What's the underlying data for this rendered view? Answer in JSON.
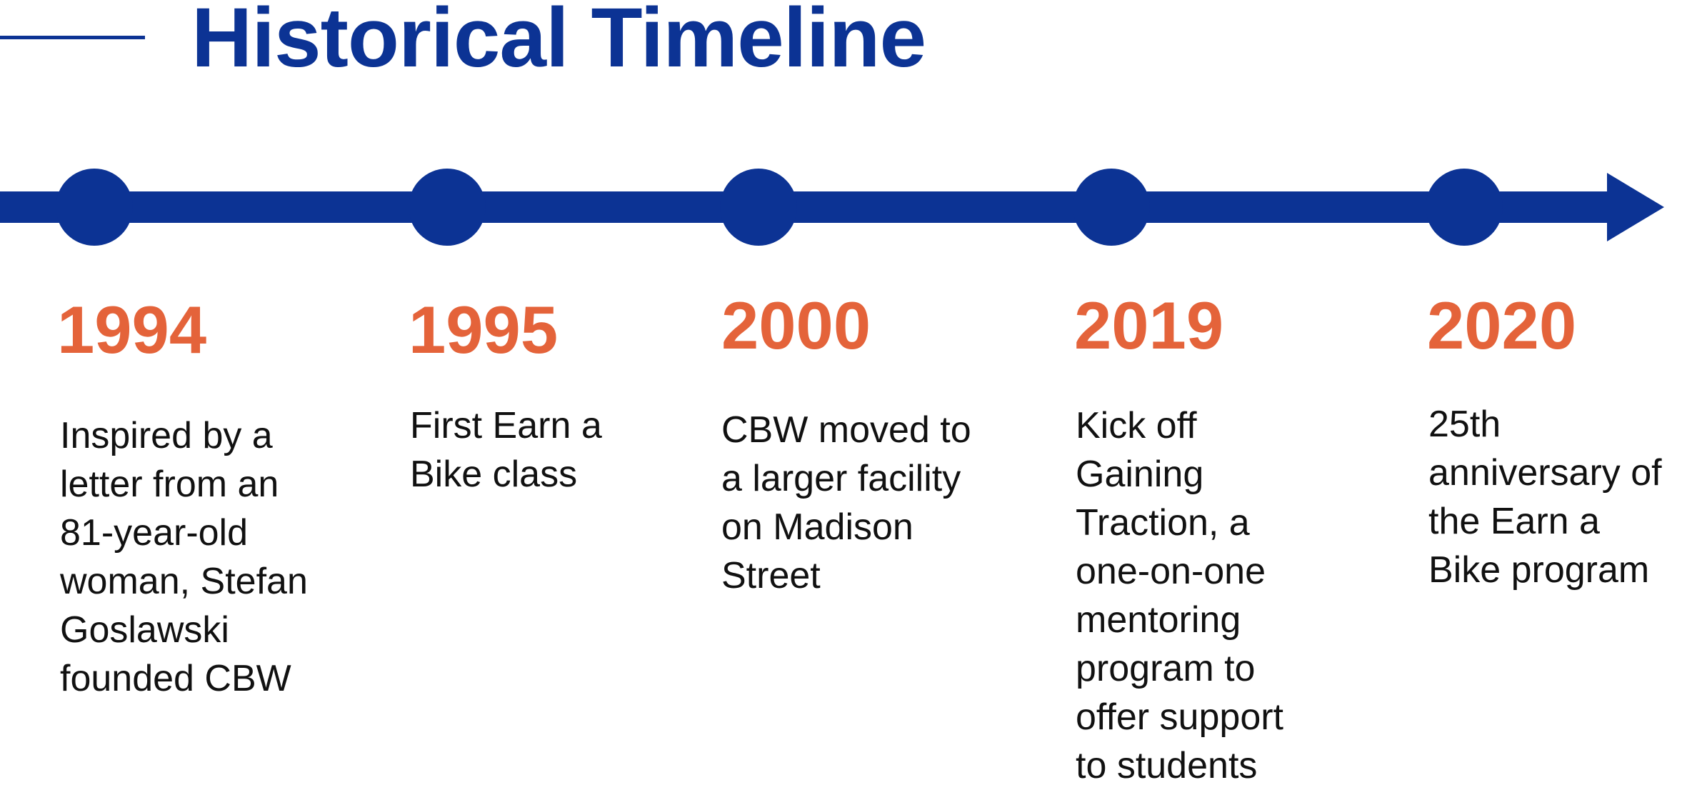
{
  "title": "Historical Timeline",
  "colors": {
    "primary": "#0c3394",
    "accent": "#e4633a",
    "text": "#111111"
  },
  "events": [
    {
      "year": "1994",
      "description": "Inspired by a\nletter from an\n81-year-old\nwoman, Stefan\nGoslawski\nfounded CBW"
    },
    {
      "year": "1995",
      "description": "First Earn a\nBike class"
    },
    {
      "year": "2000",
      "description": "CBW moved to\na larger facility\non Madison\nStreet"
    },
    {
      "year": "2019",
      "description": "Kick off\nGaining\nTraction, a\none-on-one\nmentoring\nprogram to\noffer support\nto students"
    },
    {
      "year": "2020",
      "description": "25th\nanniversary of\nthe Earn a\nBike program"
    }
  ]
}
